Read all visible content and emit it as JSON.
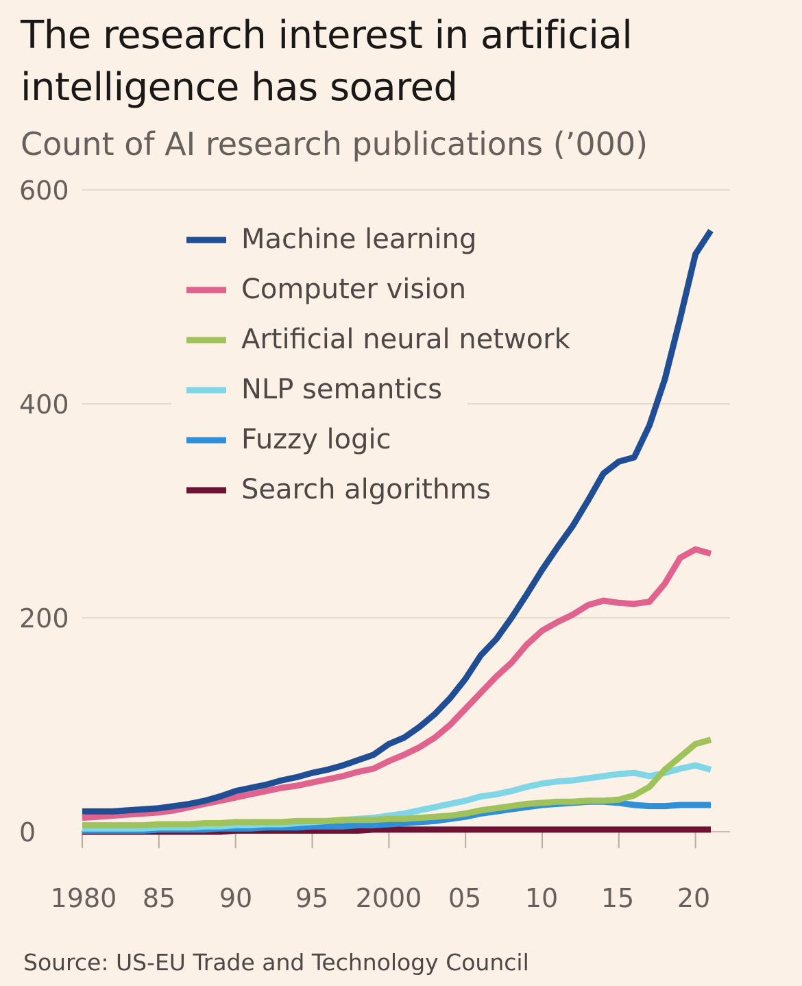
{
  "title": "The research interest in artificial intelligence has soared",
  "subtitle": "Count of AI research publications (’000)",
  "source": "Source: US-EU Trade and Technology Council",
  "chart_data": {
    "type": "line",
    "title": "The research interest in artificial intelligence has soared",
    "subtitle": "Count of AI research publications (’000)",
    "xlabel": "",
    "ylabel": "",
    "ylim": [
      0,
      600
    ],
    "xlim": [
      1980,
      2021
    ],
    "grid": true,
    "legend_position": "top-left",
    "y_ticks": [
      0,
      200,
      400,
      600
    ],
    "y_tick_labels": [
      "0",
      "200",
      "400",
      "600"
    ],
    "x_ticks": [
      1980,
      1985,
      1990,
      1995,
      2000,
      2005,
      2010,
      2015,
      2020
    ],
    "x_tick_labels": [
      "1980",
      "85",
      "90",
      "95",
      "2000",
      "05",
      "10",
      "15",
      "20"
    ],
    "x": [
      1980,
      1981,
      1982,
      1983,
      1984,
      1985,
      1986,
      1987,
      1988,
      1989,
      1990,
      1991,
      1992,
      1993,
      1994,
      1995,
      1996,
      1997,
      1998,
      1999,
      2000,
      2001,
      2002,
      2003,
      2004,
      2005,
      2006,
      2007,
      2008,
      2009,
      2010,
      2011,
      2012,
      2013,
      2014,
      2015,
      2016,
      2017,
      2018,
      2019,
      2020,
      2021
    ],
    "series": [
      {
        "name": "Machine learning",
        "color": "#1f4e94",
        "values": [
          19,
          19,
          19,
          20,
          21,
          22,
          24,
          26,
          29,
          33,
          38,
          41,
          44,
          48,
          51,
          55,
          58,
          62,
          67,
          72,
          82,
          88,
          98,
          110,
          125,
          143,
          165,
          180,
          200,
          222,
          245,
          266,
          286,
          310,
          335,
          346,
          350,
          380,
          423,
          480,
          540,
          562
        ]
      },
      {
        "name": "Computer vision",
        "color": "#e0638f",
        "values": [
          13,
          14,
          15,
          16,
          17,
          18,
          20,
          23,
          26,
          29,
          32,
          35,
          38,
          41,
          43,
          46,
          49,
          52,
          56,
          59,
          66,
          72,
          79,
          88,
          100,
          115,
          130,
          145,
          158,
          175,
          188,
          196,
          203,
          212,
          216,
          214,
          213,
          215,
          232,
          256,
          264,
          260
        ]
      },
      {
        "name": "Artificial neural network",
        "color": "#9fc25b",
        "values": [
          6,
          6,
          6,
          6,
          6,
          7,
          7,
          7,
          8,
          8,
          9,
          9,
          9,
          9,
          10,
          10,
          10,
          11,
          11,
          11,
          12,
          12,
          13,
          14,
          15,
          17,
          20,
          22,
          24,
          26,
          27,
          28,
          28,
          29,
          29,
          30,
          34,
          42,
          58,
          70,
          82,
          86
        ]
      },
      {
        "name": "NLP semantics",
        "color": "#7ed6e6",
        "values": [
          3,
          3,
          3,
          3,
          3,
          4,
          4,
          4,
          5,
          5,
          6,
          6,
          7,
          7,
          8,
          9,
          10,
          11,
          12,
          13,
          15,
          17,
          20,
          23,
          26,
          29,
          33,
          35,
          38,
          42,
          45,
          47,
          48,
          50,
          52,
          54,
          55,
          52,
          55,
          59,
          62,
          58
        ]
      },
      {
        "name": "Fuzzy logic",
        "color": "#2f8fd8",
        "values": [
          1,
          1,
          1,
          1,
          1,
          2,
          2,
          2,
          2,
          3,
          3,
          3,
          4,
          4,
          4,
          5,
          5,
          5,
          6,
          6,
          7,
          8,
          9,
          10,
          12,
          14,
          17,
          19,
          21,
          23,
          25,
          26,
          27,
          28,
          28,
          27,
          25,
          24,
          24,
          25,
          25,
          25
        ]
      },
      {
        "name": "Search algorithms",
        "color": "#6e1132",
        "values": [
          0,
          0,
          0,
          0,
          0,
          0,
          0,
          0,
          0,
          0,
          1,
          1,
          1,
          1,
          1,
          1,
          1,
          1,
          1,
          2,
          2,
          2,
          2,
          2,
          2,
          2,
          2,
          2,
          2,
          2,
          2,
          2,
          2,
          2,
          2,
          2,
          2,
          2,
          2,
          2,
          2,
          2
        ]
      }
    ]
  }
}
